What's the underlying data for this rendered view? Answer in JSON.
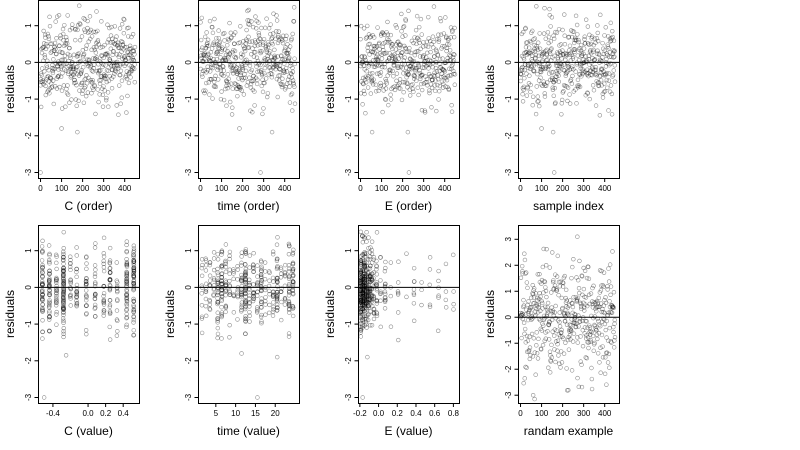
{
  "chart_data": [
    {
      "type": "scatter",
      "xlabel": "C (order)",
      "ylabel": "residuals",
      "xlim": [
        -12,
        468
      ],
      "ylim": [
        -3.15,
        1.7
      ],
      "xticks": [
        0,
        100,
        200,
        300,
        400
      ],
      "xtick_labels": [
        "0",
        "100",
        "200",
        "300",
        "400"
      ],
      "yticks": [
        -3,
        -2,
        -1,
        0,
        1
      ],
      "ytick_labels": [
        "-3",
        "-2",
        "-1",
        "0",
        "1"
      ],
      "reference_line_y": 0,
      "n_points": 450,
      "x_kind": "order",
      "residual_kind": "model",
      "seed": 11,
      "outliers": [
        {
          "x": 100,
          "y": -1.8
        },
        {
          "x": 175,
          "y": -1.9
        },
        {
          "x": 0,
          "y": -3.0
        }
      ]
    },
    {
      "type": "scatter",
      "xlabel": "time (order)",
      "ylabel": "residuals",
      "xlim": [
        -12,
        468
      ],
      "ylim": [
        -3.15,
        1.7
      ],
      "xticks": [
        0,
        100,
        200,
        300,
        400
      ],
      "xtick_labels": [
        "0",
        "100",
        "200",
        "300",
        "400"
      ],
      "yticks": [
        -3,
        -2,
        -1,
        0,
        1
      ],
      "ytick_labels": [
        "-3",
        "-2",
        "-1",
        "0",
        "1"
      ],
      "reference_line_y": 0,
      "n_points": 450,
      "x_kind": "order",
      "residual_kind": "model",
      "seed": 23,
      "outliers": [
        {
          "x": 185,
          "y": -1.8
        },
        {
          "x": 340,
          "y": -1.9
        },
        {
          "x": 285,
          "y": -3.0
        }
      ]
    },
    {
      "type": "scatter",
      "xlabel": "E (order)",
      "ylabel": "residuals",
      "xlim": [
        -12,
        468
      ],
      "ylim": [
        -3.15,
        1.7
      ],
      "xticks": [
        0,
        100,
        200,
        300,
        400
      ],
      "xtick_labels": [
        "0",
        "100",
        "200",
        "300",
        "400"
      ],
      "yticks": [
        -3,
        -2,
        -1,
        0,
        1
      ],
      "ytick_labels": [
        "-3",
        "-2",
        "-1",
        "0",
        "1"
      ],
      "reference_line_y": 0,
      "n_points": 450,
      "x_kind": "order",
      "residual_kind": "model",
      "seed": 37,
      "outliers": [
        {
          "x": 55,
          "y": -1.9
        },
        {
          "x": 225,
          "y": -1.9
        },
        {
          "x": 230,
          "y": -3.0
        }
      ]
    },
    {
      "type": "scatter",
      "xlabel": "sample index",
      "ylabel": "residuals",
      "xlim": [
        -12,
        468
      ],
      "ylim": [
        -3.15,
        1.7
      ],
      "xticks": [
        0,
        100,
        200,
        300,
        400
      ],
      "xtick_labels": [
        "0",
        "100",
        "200",
        "300",
        "400"
      ],
      "yticks": [
        -3,
        -2,
        -1,
        0,
        1
      ],
      "ytick_labels": [
        "-3",
        "-2",
        "-1",
        "0",
        "1"
      ],
      "reference_line_y": 0,
      "n_points": 450,
      "x_kind": "order",
      "residual_kind": "model",
      "seed": 41,
      "outliers": [
        {
          "x": 100,
          "y": -1.8
        },
        {
          "x": 155,
          "y": -1.9
        },
        {
          "x": 160,
          "y": -3.0
        }
      ]
    },
    {
      "type": "scatter",
      "xlabel": "C (value)",
      "ylabel": "residuals",
      "xlim": [
        -0.57,
        0.58
      ],
      "ylim": [
        -3.15,
        1.7
      ],
      "xticks": [
        -0.4,
        0.0,
        0.2,
        0.4
      ],
      "xtick_labels": [
        "-0.4",
        "0.0",
        "0.2",
        "0.4"
      ],
      "yticks": [
        -3,
        -2,
        -1,
        0,
        1
      ],
      "ytick_labels": [
        "-3",
        "-2",
        "-1",
        "0",
        "1"
      ],
      "reference_line_y": 0,
      "n_points": 450,
      "x_kind": "discrete",
      "residual_kind": "model",
      "seed": 53,
      "x_values": [
        -0.52,
        -0.44,
        -0.36,
        -0.28,
        -0.2,
        -0.13,
        -0.02,
        0.08,
        0.18,
        0.25,
        0.33,
        0.44,
        0.52
      ],
      "x_weights": [
        3,
        4,
        2,
        7,
        2,
        3,
        2,
        2,
        3,
        3,
        2,
        4,
        6
      ],
      "outliers": [
        {
          "x": -0.5,
          "y": -3.0
        },
        {
          "x": -0.25,
          "y": -1.85
        }
      ]
    },
    {
      "type": "scatter",
      "xlabel": "time (value)",
      "ylabel": "residuals",
      "xlim": [
        0.5,
        26
      ],
      "ylim": [
        -3.15,
        1.7
      ],
      "xticks": [
        5,
        10,
        15,
        20
      ],
      "xtick_labels": [
        "5",
        "10",
        "15",
        "20"
      ],
      "yticks": [
        -3,
        -2,
        -1,
        0,
        1
      ],
      "ytick_labels": [
        "-3",
        "-2",
        "-1",
        "0",
        "1"
      ],
      "reference_line_y": 0,
      "n_points": 450,
      "x_kind": "discrete",
      "residual_kind": "model",
      "seed": 61,
      "x_values": [
        1.5,
        2.5,
        3.5,
        4.5,
        5.5,
        6.5,
        7.5,
        8.5,
        9.5,
        10.5,
        11.5,
        12.5,
        13.5,
        14.5,
        15.5,
        16.5,
        17.5,
        18.5,
        19.5,
        20.5,
        21.5,
        22.5,
        23.5,
        24.5
      ],
      "x_weights": [
        1,
        1,
        1,
        1,
        2,
        3,
        2,
        1,
        1,
        1,
        3,
        4,
        2,
        1,
        1,
        2,
        1,
        1,
        1,
        2,
        1,
        1,
        2,
        2
      ],
      "outliers": [
        {
          "x": 11.5,
          "y": -1.8
        },
        {
          "x": 20.5,
          "y": -1.9
        },
        {
          "x": 15.5,
          "y": -3.0
        }
      ]
    },
    {
      "type": "scatter",
      "xlabel": "E (value)",
      "ylabel": "residuals",
      "xlim": [
        -0.22,
        0.86
      ],
      "ylim": [
        -3.15,
        1.7
      ],
      "xticks": [
        -0.2,
        0.0,
        0.2,
        0.4,
        0.6,
        0.8
      ],
      "xtick_labels": [
        "-0.2",
        "0.0",
        "0.2",
        "0.4",
        "0.6",
        "0.8"
      ],
      "yticks": [
        -3,
        -2,
        -1,
        0,
        1
      ],
      "ytick_labels": [
        "-3",
        "-2",
        "-1",
        "0",
        "1"
      ],
      "reference_line_y": 0,
      "n_points": 450,
      "x_kind": "discrete",
      "residual_kind": "model",
      "seed": 71,
      "x_values": [
        -0.19,
        -0.17,
        -0.15,
        -0.13,
        -0.11,
        -0.09,
        -0.07,
        -0.05,
        -0.02,
        0.02,
        0.07,
        0.13,
        0.21,
        0.3,
        0.38,
        0.46,
        0.55,
        0.64,
        0.72,
        0.8
      ],
      "x_weights": [
        14,
        12,
        10,
        8,
        6,
        5,
        4,
        3,
        3,
        2,
        2,
        1,
        1,
        1,
        1,
        1,
        1,
        1,
        1,
        1
      ],
      "outliers": [
        {
          "x": -0.17,
          "y": -3.0
        },
        {
          "x": -0.12,
          "y": -1.9
        }
      ]
    },
    {
      "type": "scatter",
      "xlabel": "randam example",
      "ylabel": "residuals",
      "xlim": [
        -12,
        468
      ],
      "ylim": [
        -3.3,
        3.55
      ],
      "xticks": [
        0,
        100,
        200,
        300,
        400
      ],
      "xtick_labels": [
        "0",
        "100",
        "200",
        "300",
        "400"
      ],
      "yticks": [
        -3,
        -2,
        -1,
        0,
        1,
        2,
        3
      ],
      "ytick_labels": [
        "-3",
        "-2",
        "-1",
        "0",
        "1",
        "2",
        "3"
      ],
      "reference_line_y": 0,
      "n_points": 450,
      "x_kind": "order",
      "residual_kind": "normal",
      "seed": 89,
      "outliers": [
        {
          "x": 270,
          "y": 3.1
        },
        {
          "x": 60,
          "y": -3.0
        }
      ]
    }
  ]
}
